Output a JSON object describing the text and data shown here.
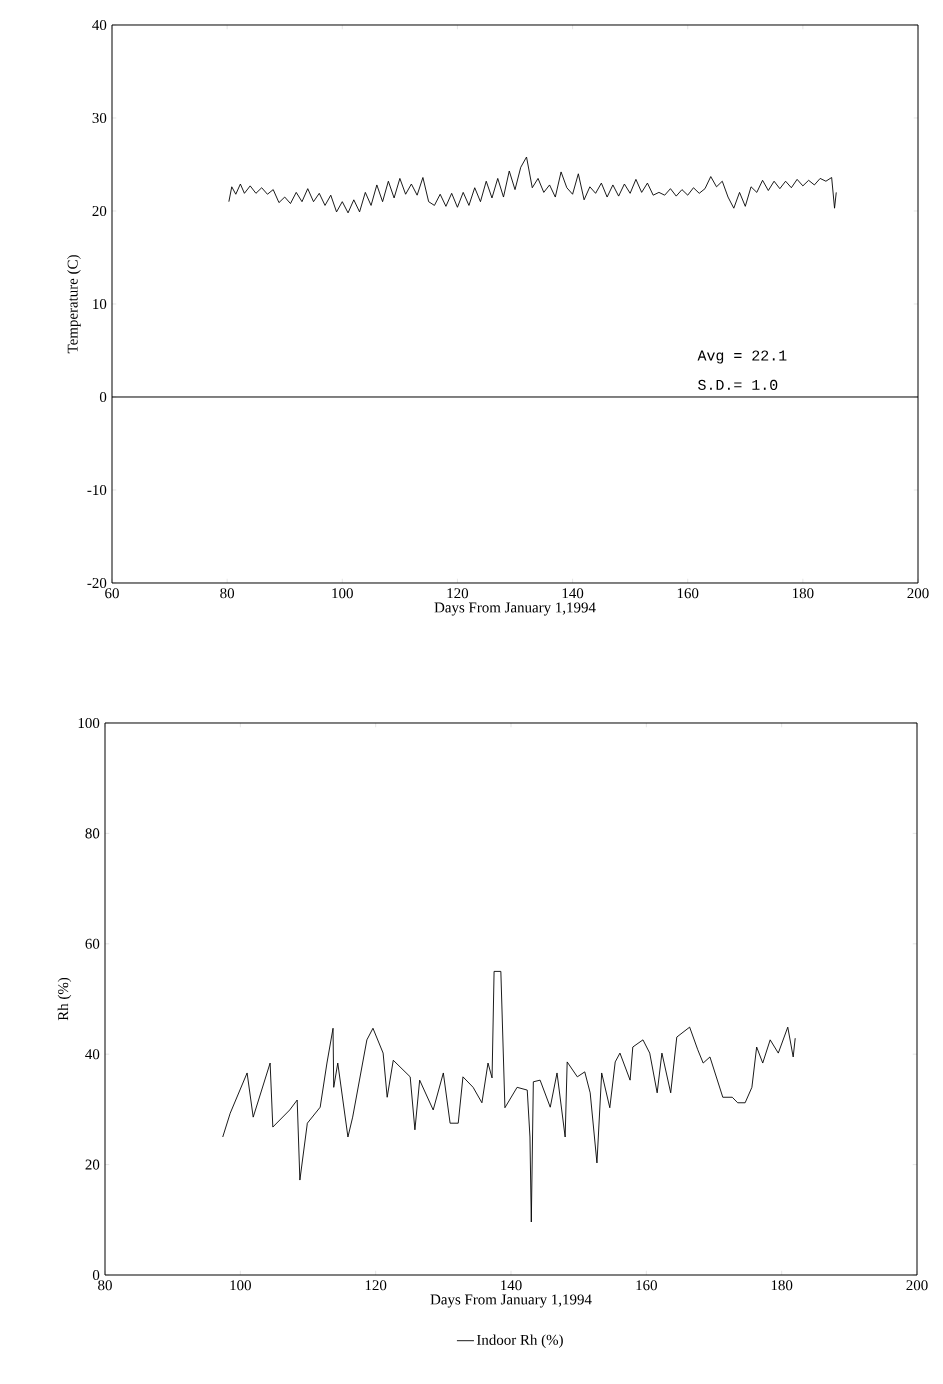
{
  "chart_data": [
    {
      "type": "line",
      "xlabel": "Days From January 1,1994",
      "ylabel": "Temperature (C)",
      "xlim": [
        60,
        200
      ],
      "ylim": [
        -20,
        40
      ],
      "xticks": [
        60,
        80,
        100,
        120,
        140,
        160,
        180,
        200
      ],
      "yticks": [
        -20,
        -10,
        0,
        10,
        20,
        30,
        40
      ],
      "marker": "none",
      "line_style": "solid",
      "ref_lines": [
        {
          "axis": "y",
          "value": 0,
          "color": "#000000"
        }
      ],
      "annotations": [
        "Avg = 22.1",
        "S.D.=  1.0"
      ],
      "series": [
        {
          "color": "#000000",
          "x": [
            80.3,
            80.8,
            81.5,
            82.3,
            83,
            84,
            85,
            86,
            87,
            88,
            89,
            90,
            91,
            92,
            93,
            94,
            95,
            96,
            97,
            98,
            99,
            100,
            101,
            102,
            103,
            104,
            105,
            106,
            107,
            108,
            109,
            110,
            111,
            112,
            113,
            114,
            115,
            116,
            117,
            118,
            119,
            120,
            121,
            122,
            123,
            124,
            125,
            126,
            127,
            128,
            129,
            130,
            131,
            132,
            133,
            134,
            135,
            136,
            137,
            138,
            139,
            140,
            141,
            142,
            143,
            144,
            145,
            146,
            147,
            148,
            149,
            150,
            151,
            152,
            153,
            154,
            155,
            156,
            157,
            158,
            159,
            160,
            161,
            162,
            163,
            164,
            165,
            166,
            167,
            168,
            169,
            170,
            171,
            172,
            173,
            174,
            175,
            176,
            177,
            178,
            179,
            180,
            181,
            182,
            183,
            184,
            185,
            185.5,
            185.8
          ],
          "values": [
            21.0,
            22.6,
            21.8,
            22.9,
            21.9,
            22.7,
            21.9,
            22.5,
            21.8,
            22.3,
            20.9,
            21.5,
            20.8,
            22.0,
            21.0,
            22.4,
            21.0,
            21.9,
            20.6,
            21.7,
            19.9,
            21.0,
            19.8,
            21.2,
            19.9,
            22.0,
            20.6,
            22.8,
            21.0,
            23.2,
            21.4,
            23.5,
            21.8,
            22.9,
            21.7,
            23.6,
            21.0,
            20.6,
            21.8,
            20.5,
            21.9,
            20.4,
            22.0,
            20.6,
            22.5,
            21.0,
            23.2,
            21.4,
            23.5,
            21.5,
            24.3,
            22.3,
            24.7,
            25.8,
            22.5,
            23.5,
            22.0,
            22.8,
            21.5,
            24.2,
            22.5,
            21.8,
            24.0,
            21.2,
            22.6,
            21.9,
            23.0,
            21.5,
            22.8,
            21.6,
            22.9,
            21.9,
            23.4,
            22.0,
            23.0,
            21.7,
            22.0,
            21.7,
            22.4,
            21.6,
            22.3,
            21.7,
            22.5,
            21.9,
            22.4,
            23.7,
            22.6,
            23.2,
            21.5,
            20.3,
            22.0,
            20.5,
            22.6,
            22.0,
            23.3,
            22.2,
            23.2,
            22.4,
            23.2,
            22.5,
            23.4,
            22.7,
            23.3,
            22.8,
            23.5,
            23.2,
            23.6,
            20.3,
            22.0
          ]
        }
      ]
    },
    {
      "type": "line",
      "xlabel": "Days From January 1,1994",
      "ylabel": "Rh (%)",
      "xlim": [
        80,
        200
      ],
      "ylim": [
        0,
        100
      ],
      "xticks": [
        80,
        100,
        120,
        140,
        160,
        180,
        200
      ],
      "yticks": [
        0,
        20,
        40,
        60,
        80,
        100
      ],
      "marker": "none",
      "line_style": "solid",
      "legend": "bottom",
      "series": [
        {
          "name": "Indoor Rh (%)",
          "color": "#000000",
          "x": [
            97.4,
            98.5,
            101,
            101.9,
            104.4,
            104.8,
            107.3,
            108.4,
            108.8,
            109.9,
            111.8,
            112.8,
            113.7,
            113.8,
            114.4,
            115.9,
            116.6,
            118.7,
            119.6,
            121.1,
            121.7,
            122.6,
            125.1,
            125.8,
            126.5,
            128.5,
            130,
            131,
            132.2,
            132.9,
            134.4,
            135.7,
            136.6,
            137.2,
            137.5,
            138.5,
            139.1,
            140.9,
            142.4,
            142.8,
            143,
            143.3,
            144.3,
            145.8,
            146.8,
            148,
            148.3,
            149.8,
            150.9,
            151.7,
            152.7,
            153.4,
            154.6,
            155.4,
            156.1,
            157.6,
            158,
            159.5,
            160.5,
            161.6,
            162.3,
            163.6,
            164.5,
            166.4,
            167.6,
            168.4,
            169.4,
            171.3,
            172.7,
            173.5,
            174.6,
            175.6,
            176.3,
            177.2,
            178.3,
            179.5,
            180.9,
            181.7,
            182
          ],
          "values": [
            25,
            29.3,
            36.6,
            28.6,
            38.4,
            26.8,
            29.9,
            31.7,
            17.2,
            27.5,
            30.4,
            38.4,
            44.7,
            34,
            38.4,
            25,
            28.6,
            42.6,
            44.7,
            40.2,
            32.2,
            38.9,
            35.9,
            26.3,
            35.3,
            29.9,
            36.6,
            27.5,
            27.5,
            35.9,
            34,
            31.2,
            38.4,
            35.7,
            55,
            55,
            30.3,
            34,
            33.5,
            25,
            9.6,
            35,
            35.3,
            30.4,
            36.6,
            25,
            38.6,
            35.9,
            36.8,
            33,
            20.3,
            36.6,
            30.3,
            38.6,
            40.2,
            35.3,
            41.3,
            42.6,
            40.2,
            33,
            40.2,
            33,
            43.1,
            44.9,
            40.8,
            38.4,
            39.5,
            32.2,
            32.2,
            31.2,
            31.2,
            34,
            41.3,
            38.4,
            42.6,
            40.2,
            44.9,
            39.5,
            42.9
          ]
        }
      ]
    }
  ]
}
